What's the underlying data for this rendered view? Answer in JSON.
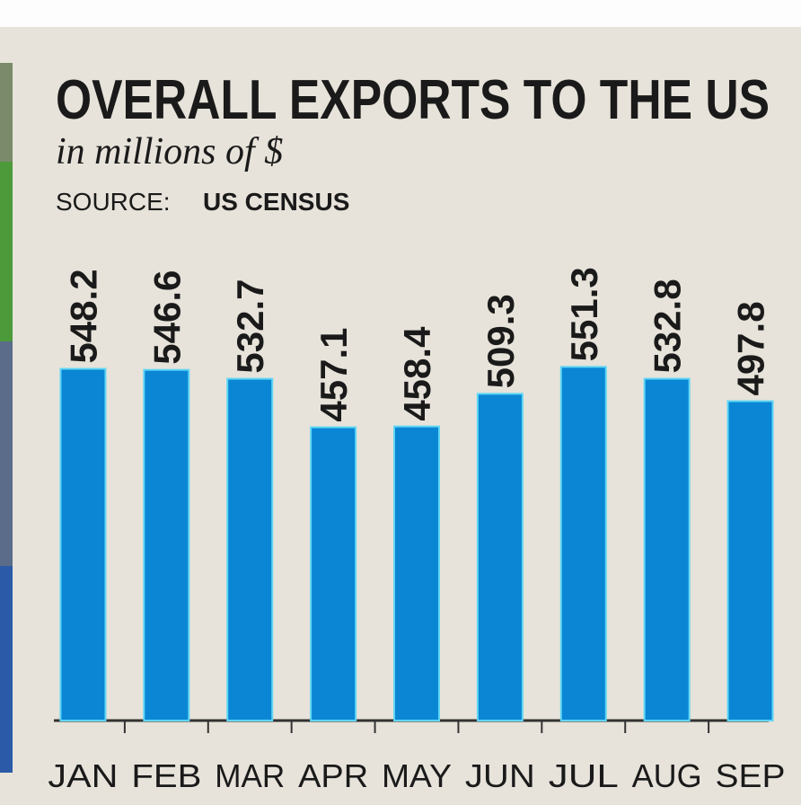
{
  "chart_data": {
    "type": "bar",
    "title": "OVERALL EXPORTS TO THE US",
    "subtitle": "in millions of $",
    "source_label": "SOURCE:",
    "source": "US CENSUS",
    "categories": [
      "JAN",
      "FEB",
      "MAR",
      "APR",
      "MAY",
      "JUN",
      "JUL",
      "AUG",
      "SEP"
    ],
    "values": [
      548.2,
      546.6,
      532.7,
      457.1,
      458.4,
      509.3,
      551.3,
      532.8,
      497.8
    ],
    "color": "#0a86d4",
    "ylim": [
      0,
      640
    ]
  }
}
